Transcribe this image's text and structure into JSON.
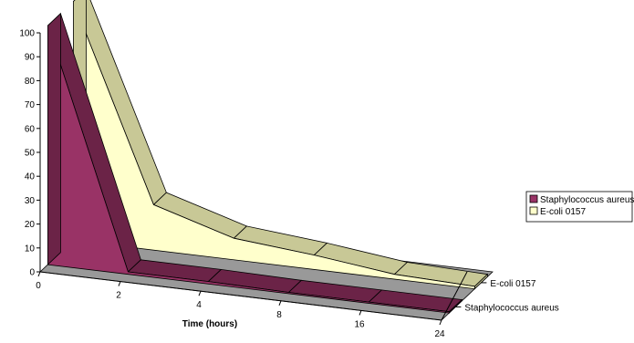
{
  "chart_data": {
    "type": "area",
    "title": "",
    "xlabel": "Time (hours)",
    "ylabel": "",
    "ylim": [
      0,
      100
    ],
    "y_ticks": [
      "0",
      "10",
      "20",
      "30",
      "40",
      "50",
      "60",
      "70",
      "80",
      "90",
      "100"
    ],
    "categories": [
      "0",
      "2",
      "4",
      "8",
      "16",
      "24"
    ],
    "series": [
      {
        "name": "Staphylococcus aureus",
        "values": [
          100,
          1,
          1,
          0.5,
          0.5,
          0.5
        ],
        "color": "#993366",
        "side_color": "#6b2347"
      },
      {
        "name": "E-coli 0157",
        "values": [
          100,
          19,
          9,
          6,
          2,
          1
        ],
        "color": "#ffffcc",
        "side_color": "#c8c896"
      }
    ],
    "depth_labels": [
      "E-coli 0157",
      "Staphylococcus aureus"
    ],
    "floor_color": "#999999",
    "legend": {
      "position": "right",
      "items": [
        {
          "label": "Staphylococcus aureus",
          "color": "#993366"
        },
        {
          "label": "E-coli 0157",
          "color": "#ffffcc"
        }
      ]
    }
  }
}
